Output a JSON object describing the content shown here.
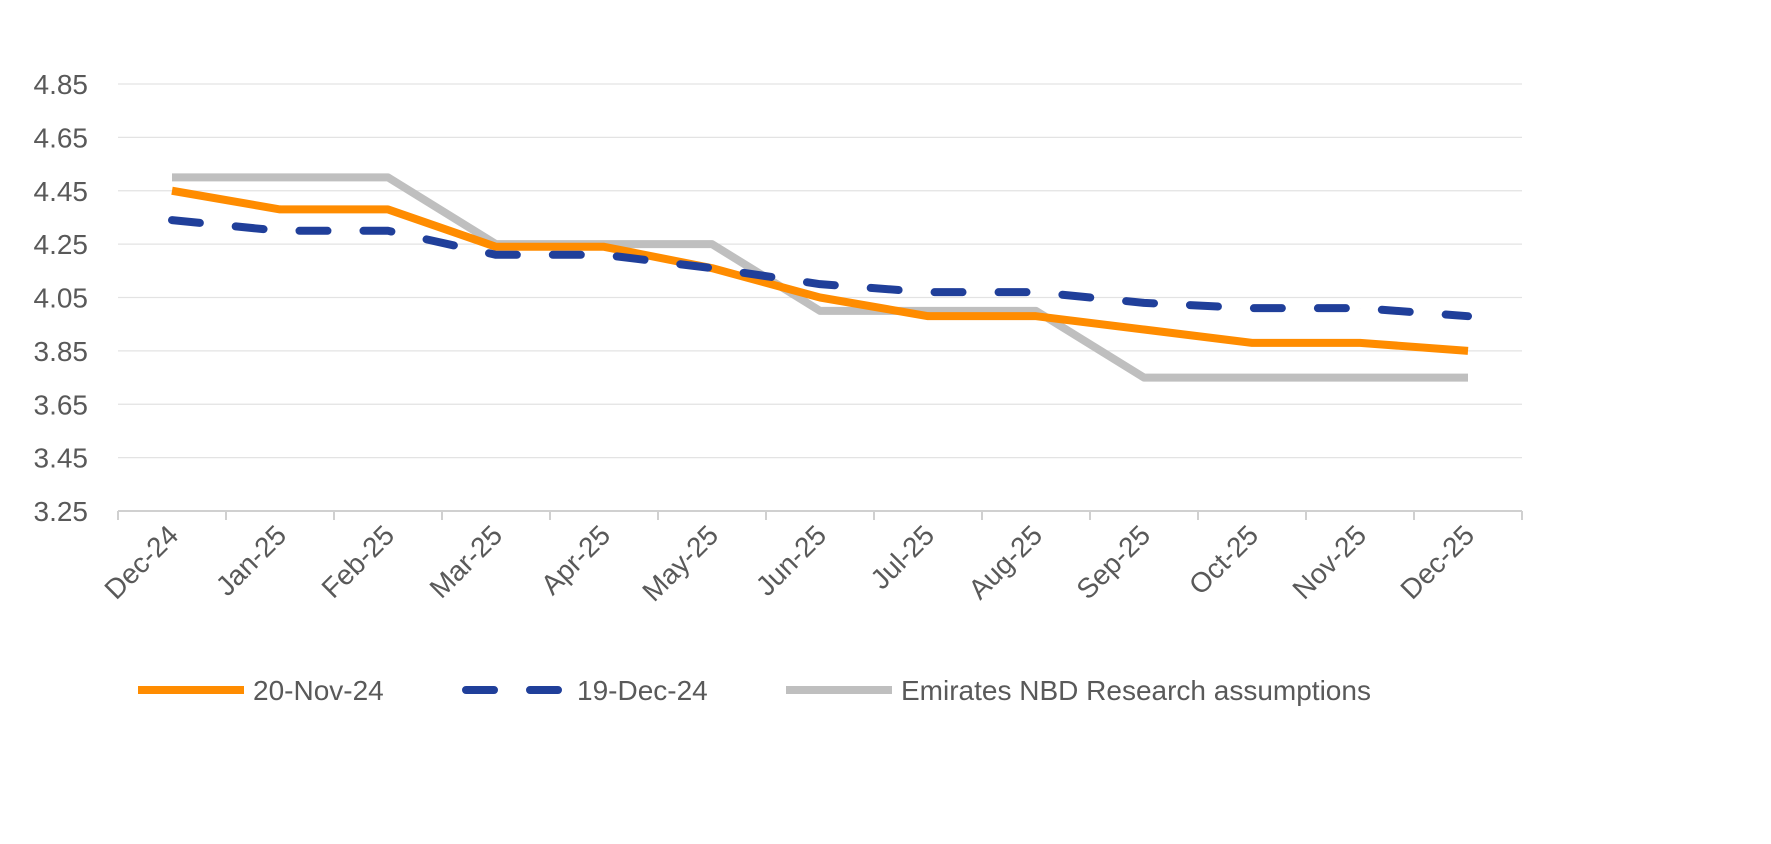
{
  "chart_data": {
    "type": "line",
    "title": "",
    "xlabel": "",
    "ylabel": "",
    "ylim": [
      3.25,
      4.85
    ],
    "yticks": [
      "3.25",
      "3.45",
      "3.65",
      "3.85",
      "4.05",
      "4.25",
      "4.45",
      "4.65",
      "4.85"
    ],
    "grid": true,
    "legend_position": "bottom",
    "categories": [
      "Dec-24",
      "Jan-25",
      "Feb-25",
      "Mar-25",
      "Apr-25",
      "May-25",
      "Jun-25",
      "Jul-25",
      "Aug-25",
      "Sep-25",
      "Oct-25",
      "Nov-25",
      "Dec-25"
    ],
    "series": [
      {
        "name": "20-Nov-24",
        "color": "#FF8C00",
        "style": "solid",
        "values": [
          4.45,
          4.38,
          4.38,
          4.24,
          4.24,
          4.16,
          4.05,
          3.98,
          3.98,
          3.93,
          3.88,
          3.88,
          3.85
        ]
      },
      {
        "name": "19-Dec-24",
        "color": "#203F9A",
        "style": "dashed",
        "values": [
          4.34,
          4.3,
          4.3,
          4.21,
          4.21,
          4.16,
          4.1,
          4.07,
          4.07,
          4.03,
          4.01,
          4.01,
          3.98
        ]
      },
      {
        "name": "Emirates NBD Research assumptions",
        "color": "#BFBFBF",
        "style": "solid",
        "values": [
          4.5,
          4.5,
          4.5,
          4.25,
          4.25,
          4.25,
          4.0,
          4.0,
          4.0,
          3.75,
          3.75,
          3.75,
          3.75
        ]
      }
    ]
  }
}
